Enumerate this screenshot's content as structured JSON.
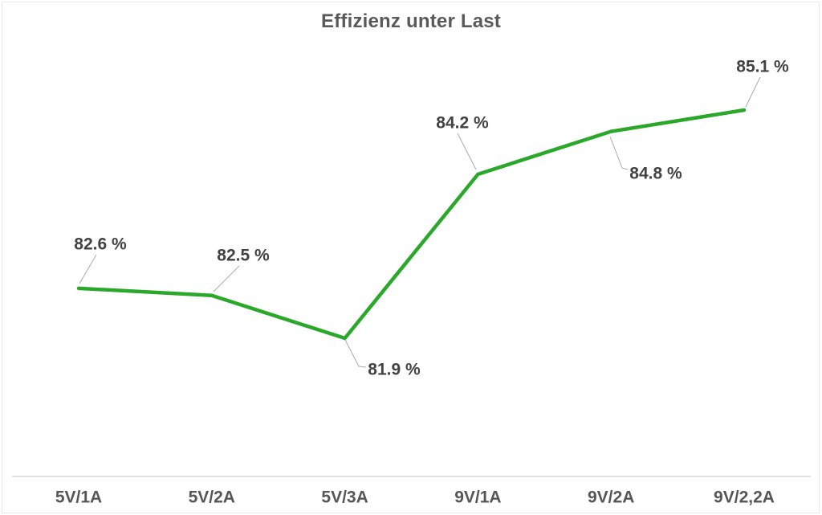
{
  "page": {
    "background": "#ffffff",
    "frame_border_color": "#e9e9e9"
  },
  "chart_data": {
    "type": "line",
    "title": "Effizienz unter Last",
    "categories": [
      "5V/1A",
      "5V/2A",
      "5V/3A",
      "9V/1A",
      "9V/2A",
      "9V/2,2A"
    ],
    "series": [
      {
        "name": "Effizienz",
        "color": "#2aa82a",
        "values": [
          82.6,
          82.5,
          81.9,
          84.2,
          84.8,
          85.1
        ]
      }
    ],
    "data_labels": [
      "82.6 %",
      "82.5 %",
      "81.9 %",
      "84.2 %",
      "84.8 %",
      "85.1 %"
    ],
    "xlabel": "",
    "ylabel": "",
    "ylim": [
      81.0,
      86.0
    ],
    "grid": false,
    "legend": "none",
    "y_axis_visible": false,
    "x_axis_line_color": "#d9d9d9",
    "leader_line_color": "#ababab",
    "title_color": "#595959",
    "data_label_color": "#424242",
    "tick_label_color": "#565656"
  }
}
